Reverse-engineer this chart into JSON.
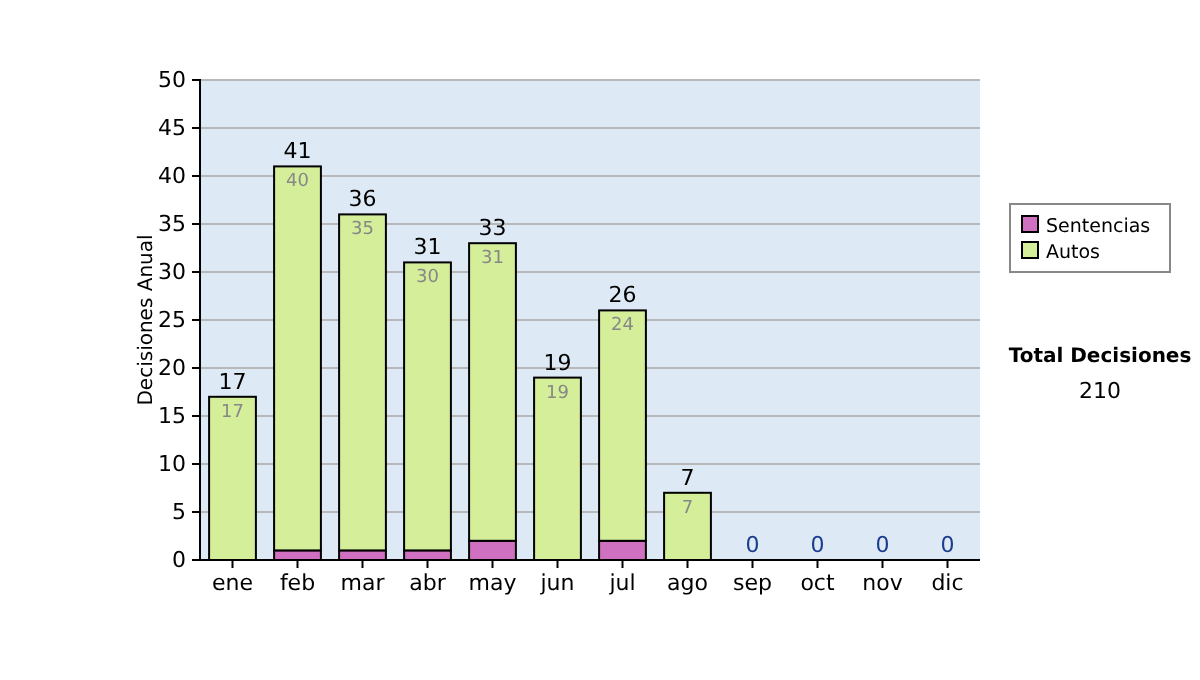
{
  "chart_data": {
    "type": "bar",
    "stacked": true,
    "ylabel": "Decisiones Anual",
    "categories": [
      "ene",
      "feb",
      "mar",
      "abr",
      "may",
      "jun",
      "jul",
      "ago",
      "sep",
      "oct",
      "nov",
      "dic"
    ],
    "series": [
      {
        "name": "Sentencias",
        "color": "#d070c0",
        "values": [
          0,
          1,
          1,
          1,
          2,
          0,
          2,
          0,
          0,
          0,
          0,
          0
        ]
      },
      {
        "name": "Autos",
        "color": "#d4ee9a",
        "values": [
          17,
          40,
          35,
          30,
          31,
          19,
          24,
          7,
          0,
          0,
          0,
          0
        ],
        "value_labels": [
          "17",
          "40",
          "35",
          "30",
          "31",
          "19",
          "24",
          "7",
          null,
          null,
          null,
          null
        ]
      }
    ],
    "totals": [
      "17",
      "41",
      "36",
      "31",
      "33",
      "19",
      "26",
      "7",
      "0",
      "0",
      "0",
      "0"
    ],
    "ylim": [
      0,
      50
    ],
    "yticks": [
      0,
      5,
      10,
      15,
      20,
      25,
      30,
      35,
      40,
      45,
      50
    ],
    "grid": "y",
    "legend": "right",
    "annotations": [
      "Total Decisiones",
      "210"
    ]
  }
}
